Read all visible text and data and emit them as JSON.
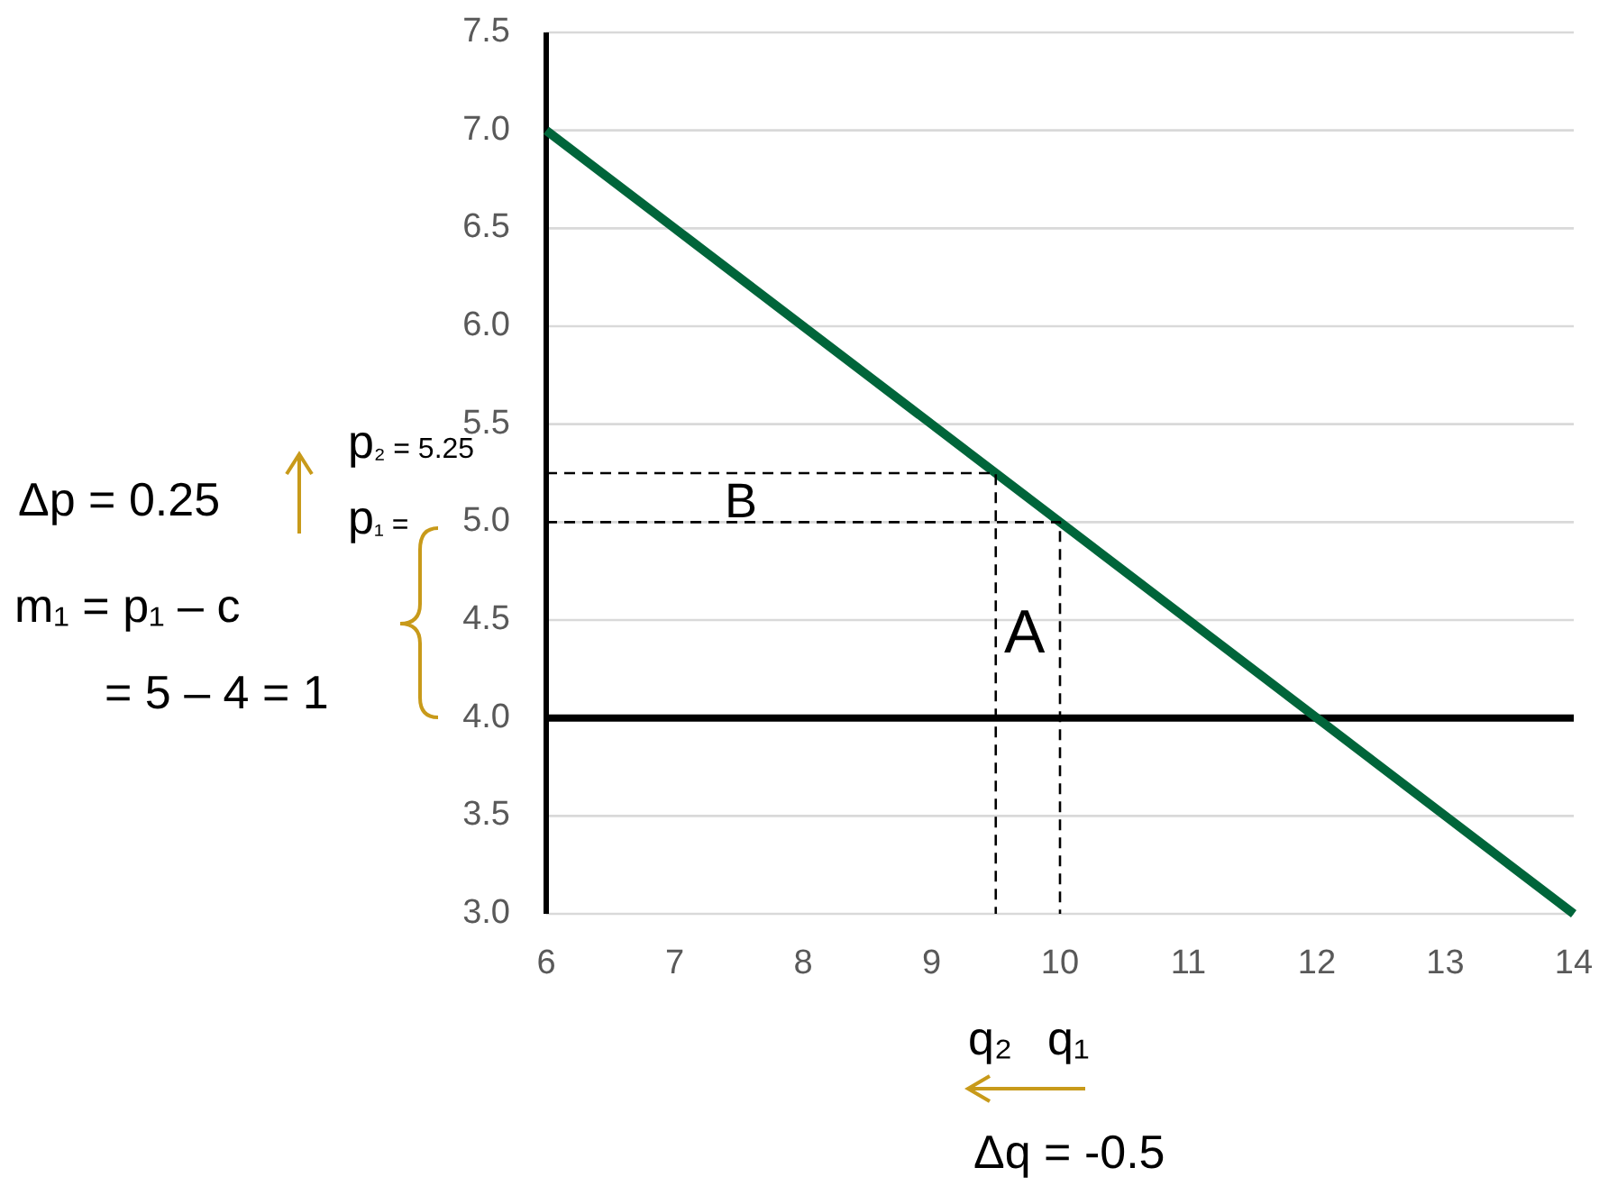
{
  "chart_data": {
    "type": "line",
    "xlim": [
      6,
      14
    ],
    "xticks": [
      6,
      7,
      8,
      9,
      10,
      11,
      12,
      13,
      14
    ],
    "ylim": [
      3,
      7.5
    ],
    "yticks": [
      {
        "value": 3,
        "label": "3.0"
      },
      {
        "value": 3.5,
        "label": "3.5"
      },
      {
        "value": 4,
        "label": "4.0"
      },
      {
        "value": 4.5,
        "label": "4.5"
      },
      {
        "value": 5,
        "label": "5.0"
      },
      {
        "value": 5.5,
        "label": "5.5"
      },
      {
        "value": 6,
        "label": "6.0"
      },
      {
        "value": 6.5,
        "label": "6.5"
      },
      {
        "value": 7,
        "label": "7.0"
      },
      {
        "value": 7.5,
        "label": "7.5"
      }
    ],
    "grid": "y",
    "series": [
      {
        "x": [
          6,
          14
        ],
        "values": [
          7,
          3
        ],
        "color": "#00653a"
      },
      {
        "x": [
          6,
          9.5,
          9.5
        ],
        "values": [
          5.25,
          5.25,
          3
        ],
        "color": "#000000",
        "line_style": "dashed"
      },
      {
        "x": [
          6,
          10,
          10
        ],
        "values": [
          5,
          5,
          3
        ],
        "color": "#000000",
        "line_style": "dashed"
      }
    ],
    "ref_lines": [
      {
        "axis": "y",
        "value": 4,
        "color": "#000000"
      }
    ],
    "annotations": [
      "B",
      "A",
      "Δp = 0.25",
      "p₂ = 5.25",
      "p₁ =",
      "m₁ = p₁ – c",
      "= 5 – 4 = 1",
      "q₂",
      "q₁",
      "Δq = -0.5"
    ]
  }
}
